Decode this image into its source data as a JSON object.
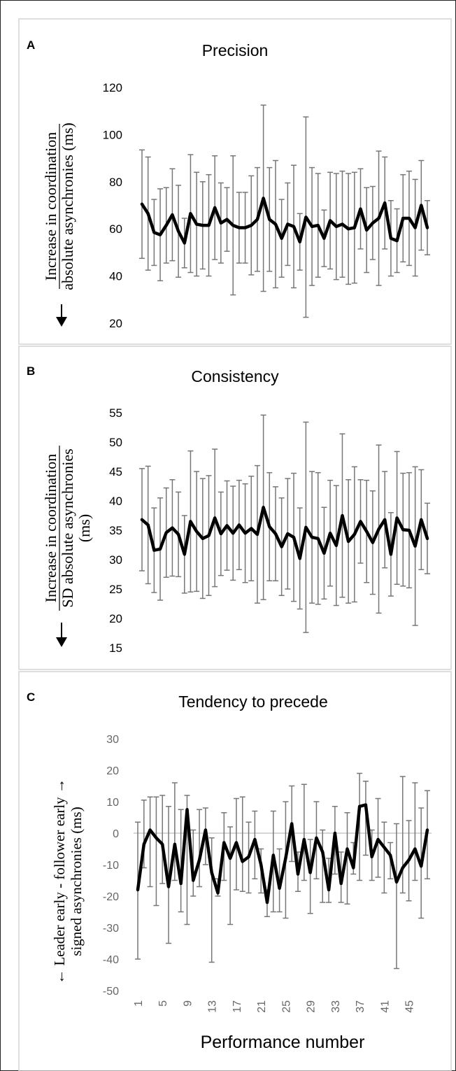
{
  "chart_data": [
    {
      "panel_label": "A",
      "type": "line",
      "title": "Precision",
      "ylabel_line1": "Increase in coordination",
      "ylabel_line2": "absolute asynchronies (ms)",
      "ylabel_line3": "",
      "ylim": [
        20,
        120
      ],
      "yticks": [
        20,
        40,
        60,
        80,
        100,
        120
      ],
      "zero_line": false,
      "x": [
        1,
        2,
        3,
        4,
        5,
        6,
        7,
        8,
        9,
        10,
        11,
        12,
        13,
        14,
        15,
        16,
        17,
        18,
        19,
        20,
        21,
        22,
        23,
        24,
        25,
        26,
        27,
        28,
        29,
        30,
        31,
        32,
        33,
        34,
        35,
        36,
        37,
        38,
        39,
        40,
        41,
        42,
        43,
        44,
        45,
        46,
        47,
        48
      ],
      "mean": [
        70.5,
        66.5,
        58.5,
        57.5,
        61.5,
        66,
        59,
        54,
        66.5,
        62,
        61.5,
        61.5,
        69,
        62.5,
        64,
        61.5,
        60.5,
        60.5,
        61.5,
        64,
        73,
        64,
        62,
        56,
        62,
        61,
        54.5,
        65,
        61,
        61.5,
        56,
        63.5,
        61,
        62,
        60,
        60.5,
        68.5,
        59.5,
        62.5,
        64.5,
        71,
        56,
        55,
        64.5,
        64.5,
        60.5,
        70,
        60.5
      ],
      "upper": [
        93.5,
        90.5,
        72.5,
        77,
        77.5,
        85.5,
        78.5,
        64.5,
        91.5,
        84,
        80,
        83,
        91,
        79.5,
        77.5,
        91,
        75.5,
        75.5,
        82.5,
        86,
        112.5,
        86,
        89,
        72.5,
        79.5,
        87,
        66.5,
        107.5,
        86,
        83.5,
        68,
        84,
        83.5,
        84.5,
        83.5,
        84,
        85.5,
        77.5,
        78,
        93,
        90.5,
        72,
        68.5,
        83,
        84.5,
        81,
        89,
        72
      ]
    },
    {
      "panel_label": "B",
      "type": "line",
      "title": "Consistency",
      "ylabel_line1": "Increase in coordination",
      "ylabel_line2": "SD absolute asynchronies",
      "ylabel_line3": "(ms)",
      "ylim": [
        15,
        55
      ],
      "yticks": [
        15,
        20,
        25,
        30,
        35,
        40,
        45,
        50,
        55
      ],
      "zero_line": false,
      "x": [
        1,
        2,
        3,
        4,
        5,
        6,
        7,
        8,
        9,
        10,
        11,
        12,
        13,
        14,
        15,
        16,
        17,
        18,
        19,
        20,
        21,
        22,
        23,
        24,
        25,
        26,
        27,
        28,
        29,
        30,
        31,
        32,
        33,
        34,
        35,
        36,
        37,
        38,
        39,
        40,
        41,
        42,
        43,
        44,
        45,
        46,
        47,
        48
      ],
      "mean": [
        36.8,
        35.9,
        31.6,
        31.8,
        34.6,
        35.4,
        34.3,
        30.9,
        36.5,
        34.8,
        33.6,
        34.1,
        37.1,
        34.4,
        35.8,
        34.5,
        35.9,
        34.5,
        35.3,
        34.3,
        38.9,
        35.6,
        34.4,
        32.2,
        34.4,
        33.8,
        30.2,
        35.5,
        33.8,
        33.6,
        31.1,
        34.5,
        32.4,
        37.5,
        33.1,
        34.3,
        36.5,
        34.8,
        32.9,
        35.2,
        36.8,
        30.9,
        37.1,
        35.1,
        35,
        32.3,
        36.8,
        33.6
      ],
      "upper": [
        45.5,
        45.9,
        38.8,
        40.5,
        42.2,
        43.6,
        41.5,
        37.5,
        48.5,
        45,
        43.8,
        44.3,
        48.8,
        41.5,
        43.4,
        42.5,
        43.5,
        42.9,
        44.2,
        46,
        54.6,
        44.8,
        42.4,
        40.5,
        43.8,
        44.7,
        38.8,
        53.4,
        45,
        44.8,
        38.9,
        43.5,
        42.6,
        51.4,
        43.6,
        45.8,
        43.6,
        43.5,
        41.7,
        49.5,
        45,
        38,
        48.4,
        44.7,
        44.8,
        45.8,
        45.3,
        39.6
      ]
    },
    {
      "panel_label": "C",
      "type": "line",
      "title": "Tendency to precede",
      "ylabel_line1": "← Leader early - follower early →",
      "ylabel_line2": "signed asynchronies (ms)",
      "ylabel_line3": "",
      "xlabel": "Performance number",
      "ylim": [
        -50,
        30
      ],
      "yticks": [
        -50,
        -40,
        -30,
        -20,
        -10,
        0,
        10,
        20,
        30
      ],
      "xticks": [
        1,
        5,
        9,
        13,
        17,
        21,
        25,
        29,
        33,
        37,
        41,
        45
      ],
      "zero_line": true,
      "x": [
        1,
        2,
        3,
        4,
        5,
        6,
        7,
        8,
        9,
        10,
        11,
        12,
        13,
        14,
        15,
        16,
        17,
        18,
        19,
        20,
        21,
        22,
        23,
        24,
        25,
        26,
        27,
        28,
        29,
        30,
        31,
        32,
        33,
        34,
        35,
        36,
        37,
        38,
        39,
        40,
        41,
        42,
        43,
        44,
        45,
        46,
        47,
        48
      ],
      "mean": [
        -18,
        -3.5,
        1,
        -1.5,
        -3.5,
        -17,
        -3.5,
        -16,
        7.5,
        -15,
        -8.5,
        1,
        -12.5,
        -19,
        -3,
        -8,
        -3,
        -9,
        -7.5,
        -2,
        -10,
        -22,
        -7,
        -17.5,
        -8,
        3,
        -13,
        -2,
        -12.5,
        -1.5,
        -6,
        -18,
        0,
        -16,
        -5,
        -11,
        8.5,
        9,
        -7.5,
        -2,
        -4.5,
        -7,
        -15.5,
        -11,
        -8.5,
        -5,
        -10.5,
        1
      ],
      "lower": [
        -40,
        -11,
        -17,
        -23,
        -16,
        -35,
        -15,
        -25,
        -29,
        -20,
        -17,
        -10,
        -41,
        -20,
        -15,
        -29,
        -18,
        -18.5,
        -19,
        -14.5,
        -19,
        -26.5,
        -25,
        -25,
        -27,
        -9,
        -18.5,
        -15,
        -25.5,
        -14.5,
        -22,
        -22,
        -13,
        -22,
        -22.5,
        -13,
        -15,
        -7,
        -15,
        -14,
        -19,
        -14.5,
        -43,
        -19,
        -21.5,
        -15,
        -27,
        -14.5
      ],
      "upper": [
        3.5,
        10.5,
        11.5,
        11.5,
        12,
        8.5,
        16,
        7.5,
        12,
        1,
        7.5,
        8,
        -1.5,
        -14.5,
        6.5,
        2,
        11,
        11.5,
        3.5,
        7,
        -5,
        -18,
        7,
        -5,
        10,
        15,
        -6,
        15.5,
        -2,
        10,
        1,
        -8,
        8.5,
        -6,
        6.5,
        -3,
        19,
        16.5,
        1,
        11,
        3.5,
        -3,
        3,
        18,
        4,
        16,
        8,
        13.5
      ]
    }
  ]
}
